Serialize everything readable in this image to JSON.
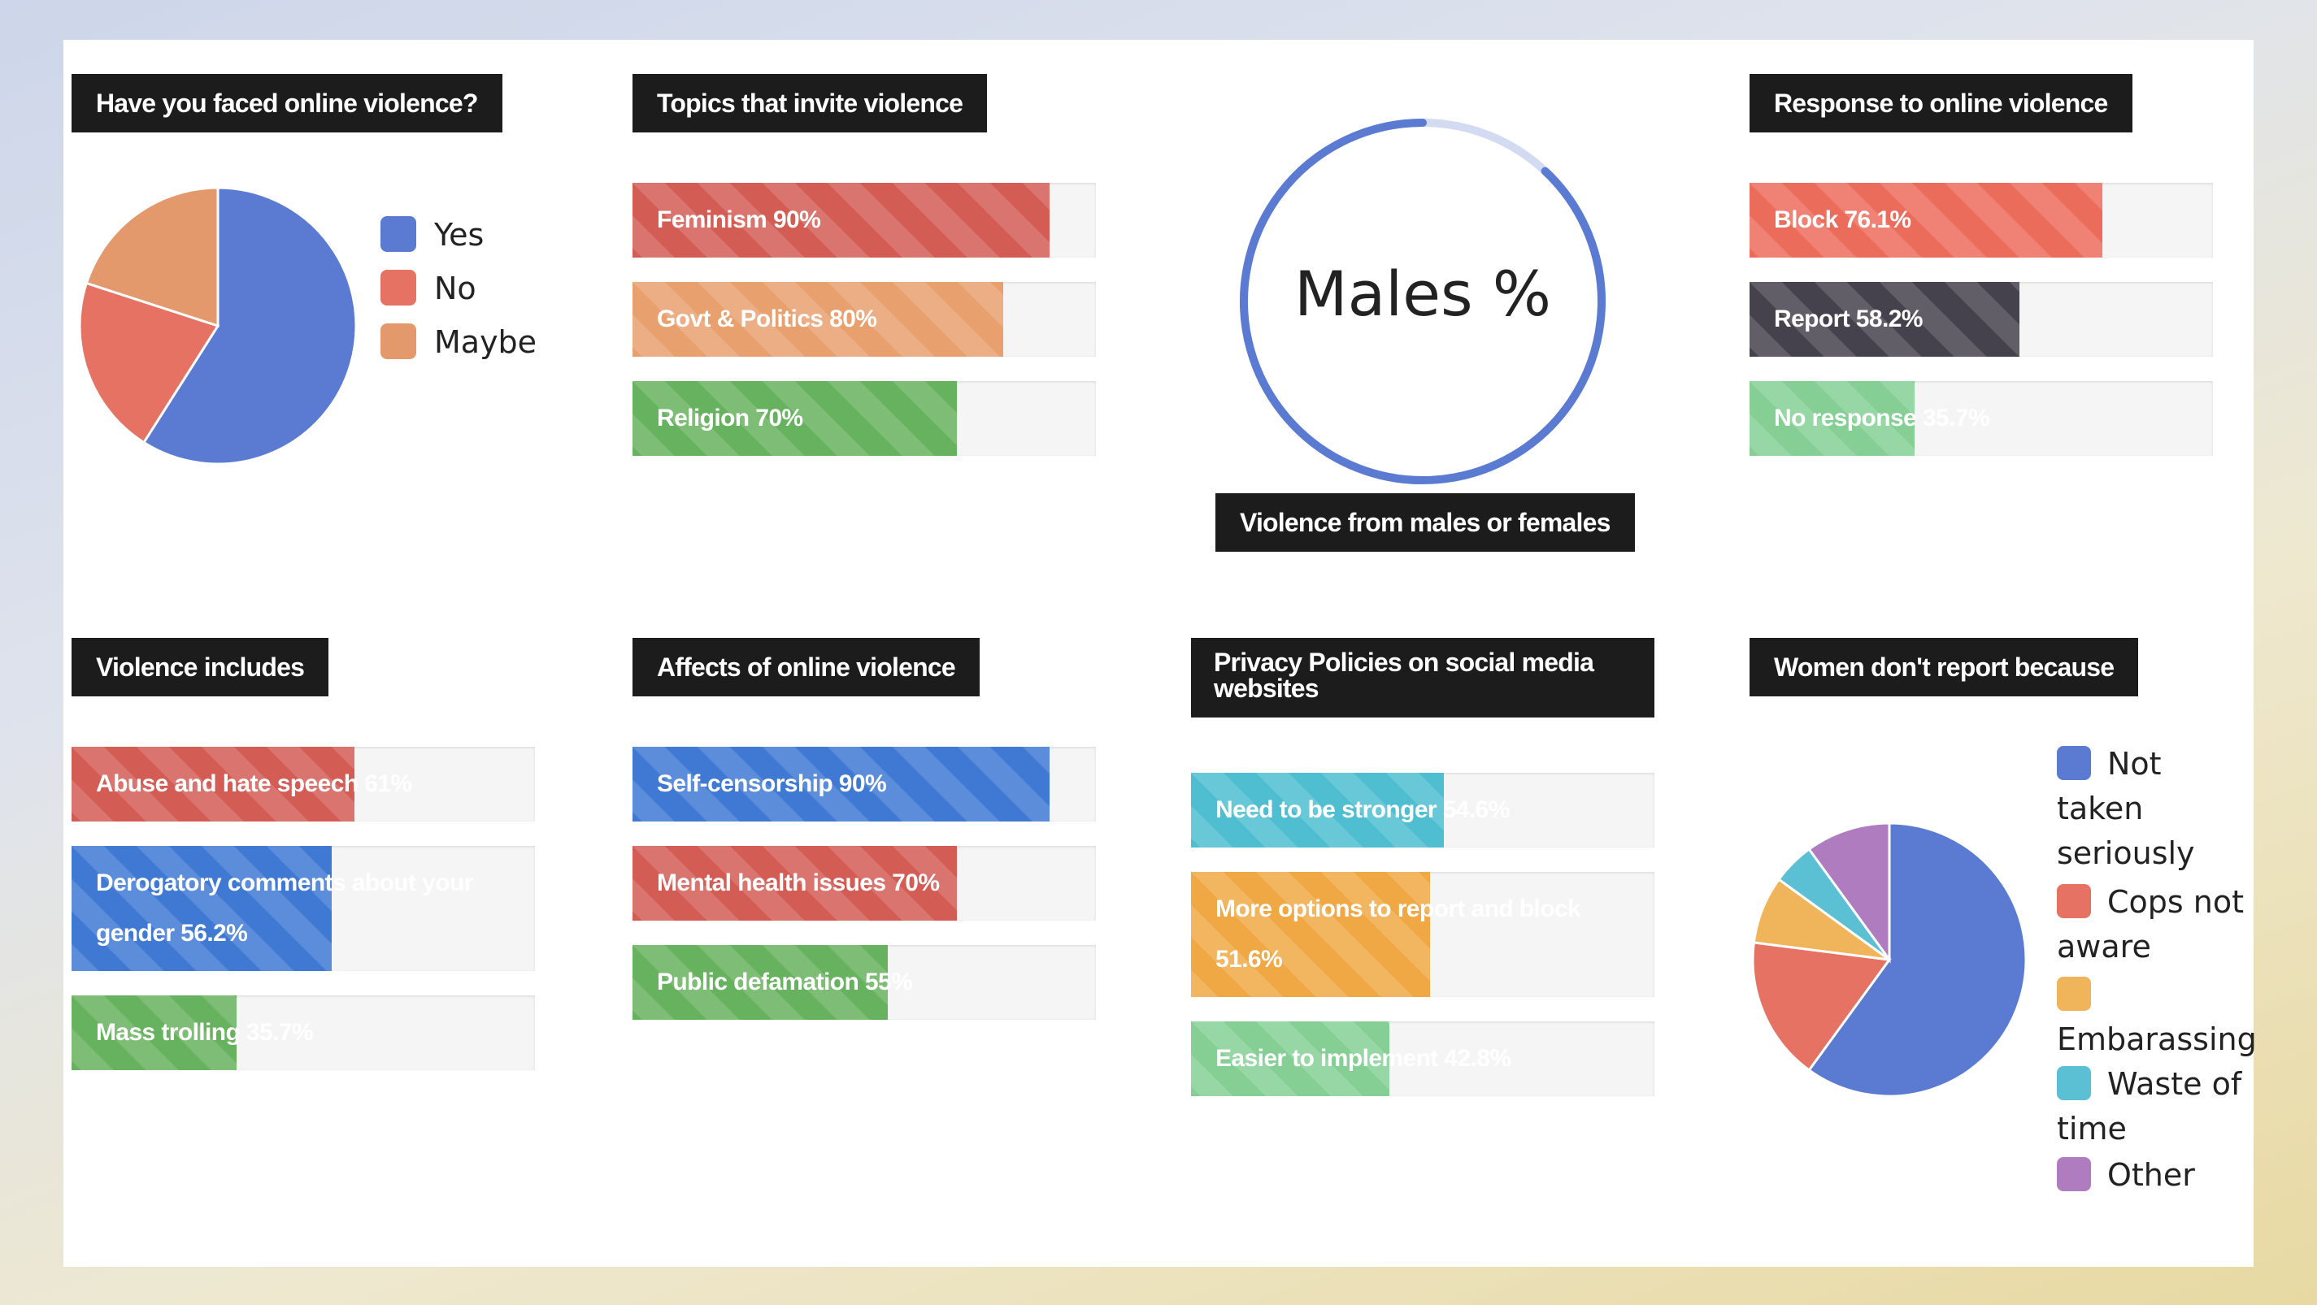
{
  "colors": {
    "blue": "#5a7bd1",
    "red": "#e57262",
    "peach": "#e4996c",
    "orange": "#f0b45a",
    "teal": "#5bc0d3",
    "purple": "#b07cc0",
    "green": "#6fba63",
    "dark": "#45424d",
    "redbar": "#d35c55",
    "peachbar": "#e9a06f",
    "greenbar": "#66b25e",
    "bluebar": "#3f79d4",
    "tealbar": "#4fbed0",
    "orangebar": "#f0a844",
    "redbar2": "#ec6c5c",
    "greenlight": "#85cf95"
  },
  "faced": {
    "title": "Have you faced online violence?",
    "legend": [
      {
        "label": "Yes",
        "color": "#5a7bd1"
      },
      {
        "label": "No",
        "color": "#e57262"
      },
      {
        "label": "Maybe",
        "color": "#e4996c"
      }
    ]
  },
  "topics": {
    "title": "Topics that invite violence",
    "bars": [
      {
        "label": "Feminism 90%",
        "value": 90,
        "color": "#d35c55"
      },
      {
        "label": "Govt & Politics 80%",
        "value": 80,
        "color": "#e9a06f"
      },
      {
        "label": "Religion 70%",
        "value": 70,
        "color": "#66b25e"
      }
    ]
  },
  "males": {
    "center": "Males %",
    "title": "Violence from males or females"
  },
  "response": {
    "title": "Response to online violence",
    "bars": [
      {
        "label": "Block 76.1%",
        "value": 76.1,
        "color": "#ec6c5c"
      },
      {
        "label": "Report 58.2%",
        "value": 58.2,
        "color": "#45424d"
      },
      {
        "label": "No response 35.7%",
        "value": 35.7,
        "color": "#85cf95"
      }
    ]
  },
  "includes": {
    "title": "Violence includes",
    "bars": [
      {
        "label": "Abuse and hate speech 61%",
        "value": 61,
        "color": "#d35c55"
      },
      {
        "label": "Derogatory comments about your gender 56.2%",
        "value": 56.2,
        "color": "#3f79d4"
      },
      {
        "label": "Mass trolling 35.7%",
        "value": 35.7,
        "color": "#66b25e"
      }
    ]
  },
  "affects": {
    "title": "Affects of online violence",
    "bars": [
      {
        "label": "Self-censorship 90%",
        "value": 90,
        "color": "#3f79d4"
      },
      {
        "label": "Mental health issues 70%",
        "value": 70,
        "color": "#d35c55"
      },
      {
        "label": "Public defamation 55%",
        "value": 55,
        "color": "#66b25e"
      }
    ]
  },
  "privacy": {
    "title": "Privacy Policies on social media websites",
    "bars": [
      {
        "label": "Need to be stronger 54.6%",
        "value": 54.6,
        "color": "#4fbed0"
      },
      {
        "label": "More options to report and block 51.6%",
        "value": 51.6,
        "color": "#f0a844"
      },
      {
        "label": "Easier to implement 42.8%",
        "value": 42.8,
        "color": "#85cf95"
      }
    ]
  },
  "women": {
    "title": "Women don't report because",
    "legend": [
      {
        "label": "Not taken seriously",
        "color": "#5a7bd1"
      },
      {
        "label": "Cops not aware",
        "color": "#e57262"
      },
      {
        "label": "Embarassing",
        "color": "#f0b45a"
      },
      {
        "label": "Waste of time",
        "color": "#5bc0d3"
      },
      {
        "label": "Other",
        "color": "#b07cc0"
      }
    ]
  },
  "chart_data": [
    {
      "type": "pie",
      "title": "Have you faced online violence?",
      "categories": [
        "Yes",
        "No",
        "Maybe"
      ],
      "values": [
        59,
        21,
        20
      ]
    },
    {
      "type": "bar",
      "title": "Topics that invite violence",
      "categories": [
        "Feminism",
        "Govt & Politics",
        "Religion"
      ],
      "values": [
        90,
        80,
        70
      ],
      "ylim": [
        0,
        100
      ]
    },
    {
      "type": "pie",
      "title": "Violence from males or females",
      "categories": [
        "Males %"
      ],
      "values": [
        88
      ]
    },
    {
      "type": "bar",
      "title": "Response to online violence",
      "categories": [
        "Block",
        "Report",
        "No response"
      ],
      "values": [
        76.1,
        58.2,
        35.7
      ],
      "ylim": [
        0,
        100
      ]
    },
    {
      "type": "bar",
      "title": "Violence includes",
      "categories": [
        "Abuse and hate speech",
        "Derogatory comments about your gender",
        "Mass trolling"
      ],
      "values": [
        61,
        56.2,
        35.7
      ],
      "ylim": [
        0,
        100
      ]
    },
    {
      "type": "bar",
      "title": "Affects of online violence",
      "categories": [
        "Self-censorship",
        "Mental health issues",
        "Public defamation"
      ],
      "values": [
        90,
        70,
        55
      ],
      "ylim": [
        0,
        100
      ]
    },
    {
      "type": "bar",
      "title": "Privacy Policies on social media websites",
      "categories": [
        "Need to be stronger",
        "More options to report and block",
        "Easier to implement"
      ],
      "values": [
        54.6,
        51.6,
        42.8
      ],
      "ylim": [
        0,
        100
      ]
    },
    {
      "type": "pie",
      "title": "Women don't report because",
      "categories": [
        "Not taken seriously",
        "Cops not aware",
        "Embarassing",
        "Waste of time",
        "Other"
      ],
      "values": [
        60,
        17,
        8,
        5,
        10
      ]
    }
  ]
}
